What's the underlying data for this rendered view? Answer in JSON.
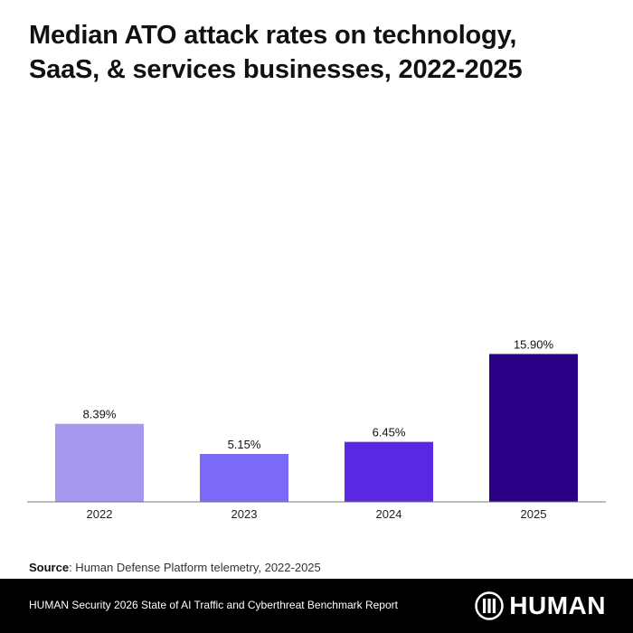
{
  "title_line1": "Median ATO attack rates on technology,",
  "title_line2": "SaaS, & services businesses, 2022-2025",
  "chart_data": {
    "type": "bar",
    "title": "Median ATO attack rates on technology, SaaS, & services businesses, 2022-2025",
    "categories": [
      "2022",
      "2023",
      "2024",
      "2025"
    ],
    "values": [
      8.39,
      5.15,
      6.45,
      15.9
    ],
    "value_labels": [
      "8.39%",
      "5.15%",
      "6.45%",
      "15.90%"
    ],
    "colors": [
      "#a897ee",
      "#7b6af7",
      "#5a27e2",
      "#2b0086"
    ],
    "xlabel": "",
    "ylabel": "",
    "ylim": [
      0,
      35
    ],
    "grid": false
  },
  "source": {
    "label": "Source",
    "text": ": Human Defense Platform telemetry, 2022-2025"
  },
  "footer": {
    "report": "HUMAN Security 2026 State of AI Traffic and Cyberthreat Benchmark Report",
    "brand": "HUMAN"
  }
}
